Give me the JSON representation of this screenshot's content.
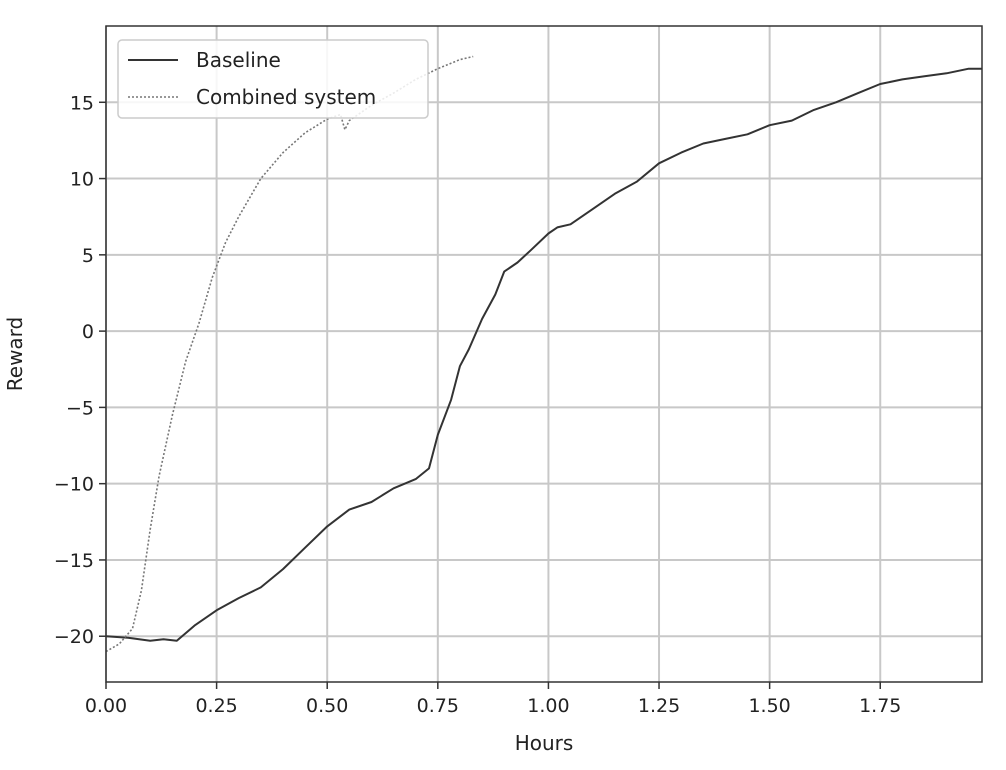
{
  "chart_data": {
    "type": "line",
    "xlabel": "Hours",
    "ylabel": "Reward",
    "xlim": [
      0,
      1.98
    ],
    "ylim": [
      -23,
      20
    ],
    "xticks": [
      0.0,
      0.25,
      0.5,
      0.75,
      1.0,
      1.25,
      1.5,
      1.75
    ],
    "xtick_labels": [
      "0.00",
      "0.25",
      "0.50",
      "0.75",
      "1.00",
      "1.25",
      "1.50",
      "1.75"
    ],
    "yticks": [
      -20,
      -15,
      -10,
      -5,
      0,
      5,
      10,
      15
    ],
    "ytick_labels": [
      "−20",
      "−15",
      "−10",
      "−5",
      "0",
      "5",
      "10",
      "15"
    ],
    "grid": true,
    "legend_position": "top-left",
    "series": [
      {
        "name": "Baseline",
        "style": "solid",
        "color": "#333333",
        "x": [
          0.0,
          0.05,
          0.1,
          0.13,
          0.16,
          0.18,
          0.2,
          0.25,
          0.3,
          0.35,
          0.4,
          0.45,
          0.5,
          0.55,
          0.6,
          0.65,
          0.7,
          0.73,
          0.75,
          0.78,
          0.8,
          0.82,
          0.85,
          0.88,
          0.9,
          0.93,
          0.96,
          1.0,
          1.02,
          1.05,
          1.1,
          1.15,
          1.2,
          1.25,
          1.3,
          1.35,
          1.4,
          1.45,
          1.5,
          1.55,
          1.6,
          1.65,
          1.7,
          1.75,
          1.8,
          1.85,
          1.9,
          1.95,
          1.98
        ],
        "y": [
          -20.0,
          -20.1,
          -20.3,
          -20.2,
          -20.3,
          -19.8,
          -19.3,
          -18.3,
          -17.5,
          -16.8,
          -15.6,
          -14.2,
          -12.8,
          -11.7,
          -11.2,
          -10.3,
          -9.7,
          -9.0,
          -6.8,
          -4.5,
          -2.3,
          -1.2,
          0.8,
          2.4,
          3.9,
          4.5,
          5.3,
          6.4,
          6.8,
          7.0,
          8.0,
          9.0,
          9.8,
          11.0,
          11.7,
          12.3,
          12.6,
          12.9,
          13.5,
          13.8,
          14.5,
          15.0,
          15.6,
          16.2,
          16.5,
          16.7,
          16.9,
          17.2,
          17.2
        ]
      },
      {
        "name": "Combined system",
        "style": "dotted",
        "color": "#777777",
        "x": [
          0.0,
          0.03,
          0.06,
          0.08,
          0.1,
          0.12,
          0.15,
          0.18,
          0.21,
          0.24,
          0.27,
          0.3,
          0.35,
          0.4,
          0.45,
          0.5,
          0.53,
          0.54,
          0.55,
          0.6,
          0.65,
          0.7,
          0.75,
          0.8,
          0.83
        ],
        "y": [
          -21.0,
          -20.5,
          -19.5,
          -17.0,
          -13.0,
          -9.5,
          -5.5,
          -2.0,
          0.5,
          3.5,
          5.8,
          7.5,
          10.0,
          11.7,
          13.0,
          13.9,
          14.2,
          13.2,
          13.8,
          14.8,
          15.6,
          16.5,
          17.2,
          17.8,
          18.0
        ]
      }
    ]
  }
}
